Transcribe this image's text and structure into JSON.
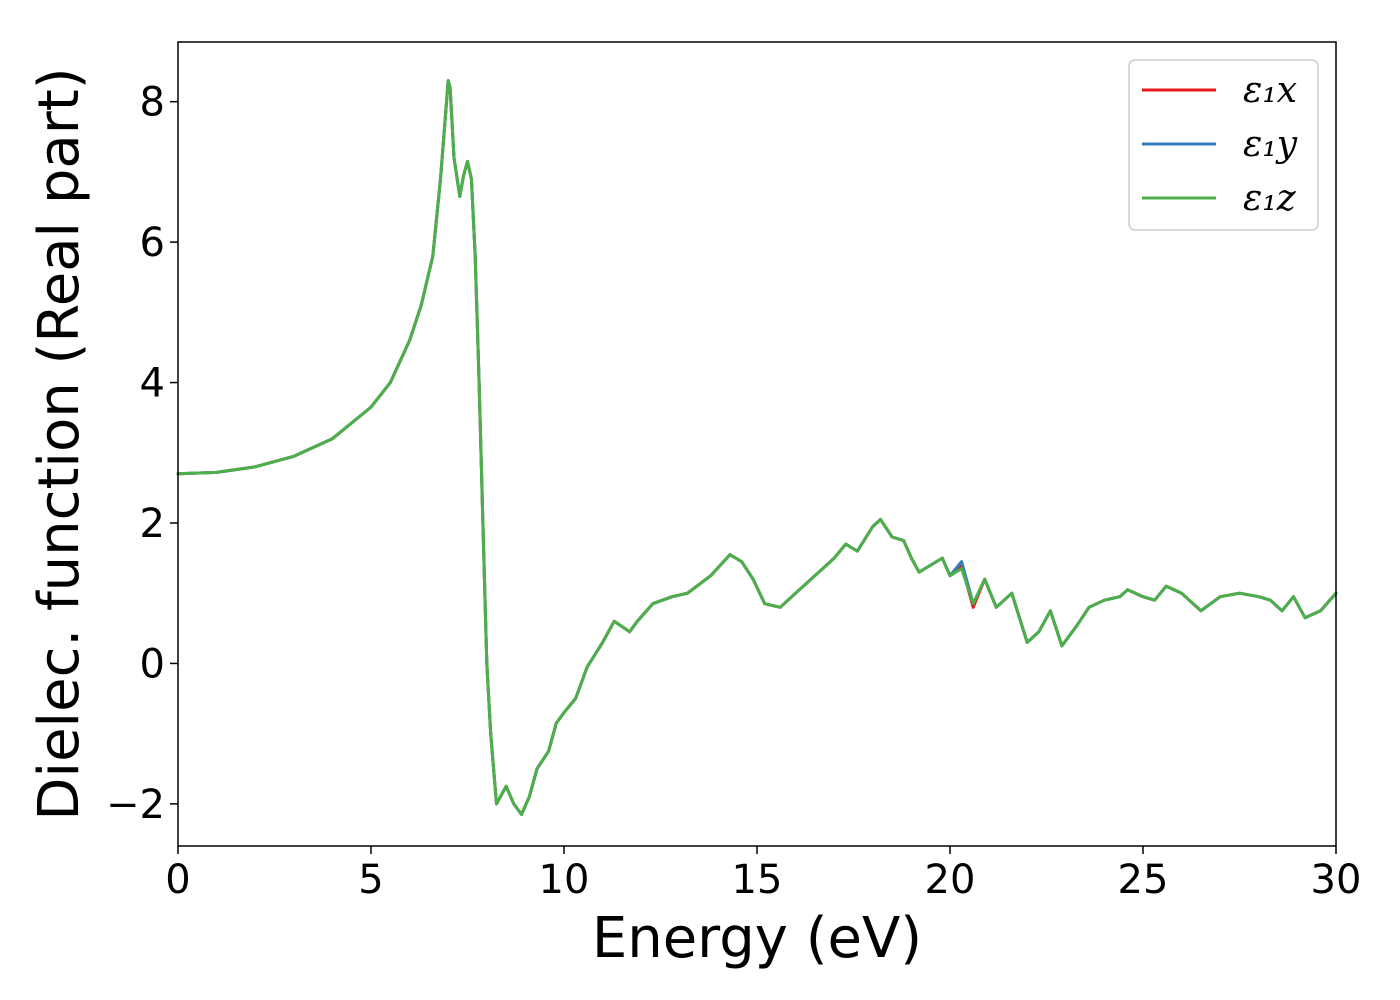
{
  "chart_data": {
    "type": "line",
    "xlabel": "Energy (eV)",
    "ylabel": "Dielec. function (Real part)",
    "xlim": [
      0,
      30
    ],
    "ylim": [
      -2.6,
      8.85
    ],
    "xticks": [
      0,
      5,
      10,
      15,
      20,
      25,
      30
    ],
    "xtick_labels": [
      "0",
      "5",
      "10",
      "15",
      "20",
      "25",
      "30"
    ],
    "yticks": [
      -2,
      0,
      2,
      4,
      6,
      8
    ],
    "ytick_labels": [
      "−2",
      "0",
      "2",
      "4",
      "6",
      "8"
    ],
    "grid": false,
    "legend_position": "top-right",
    "series": [
      {
        "name": "ε₁x",
        "color": "#e41a1c",
        "x": [
          0,
          1,
          2,
          3,
          4,
          5,
          5.5,
          6,
          6.3,
          6.6,
          6.8,
          7.0,
          7.05,
          7.15,
          7.3,
          7.4,
          7.5,
          7.6,
          7.7,
          7.8,
          7.9,
          8.0,
          8.1,
          8.25,
          8.5,
          8.7,
          8.9,
          9.1,
          9.3,
          9.6,
          9.8,
          10.0,
          10.3,
          10.6,
          11.0,
          11.3,
          11.7,
          11.9,
          12.3,
          12.8,
          13.2,
          13.8,
          14.3,
          14.6,
          14.9,
          15.2,
          15.6,
          16.0,
          16.5,
          17.0,
          17.3,
          17.6,
          18.0,
          18.2,
          18.5,
          18.8,
          19.0,
          19.2,
          19.5,
          19.8,
          20.0,
          20.3,
          20.6,
          20.9,
          21.2,
          21.6,
          22.0,
          22.3,
          22.6,
          22.9,
          23.3,
          23.6,
          24.0,
          24.4,
          24.6,
          25.0,
          25.3,
          25.6,
          26.0,
          26.5,
          27.0,
          27.5,
          28.0,
          28.3,
          28.6,
          28.9,
          29.2,
          29.6,
          30.0
        ],
        "y": [
          2.7,
          2.72,
          2.8,
          2.95,
          3.2,
          3.65,
          4.0,
          4.6,
          5.1,
          5.8,
          6.9,
          8.3,
          8.2,
          7.2,
          6.65,
          6.95,
          7.15,
          6.9,
          5.8,
          4.0,
          2.0,
          0.0,
          -1.0,
          -2.0,
          -1.75,
          -2.0,
          -2.15,
          -1.9,
          -1.5,
          -1.25,
          -0.85,
          -0.7,
          -0.5,
          -0.05,
          0.3,
          0.6,
          0.45,
          0.6,
          0.85,
          0.95,
          1.0,
          1.25,
          1.55,
          1.45,
          1.2,
          0.85,
          0.8,
          1.0,
          1.25,
          1.5,
          1.7,
          1.6,
          1.95,
          2.05,
          1.8,
          1.75,
          1.5,
          1.3,
          1.4,
          1.5,
          1.25,
          1.4,
          0.8,
          1.2,
          0.8,
          1.0,
          0.3,
          0.45,
          0.75,
          0.25,
          0.55,
          0.8,
          0.9,
          0.95,
          1.05,
          0.95,
          0.9,
          1.1,
          1.0,
          0.75,
          0.95,
          1.0,
          0.95,
          0.9,
          0.75,
          0.95,
          0.65,
          0.75,
          1.0
        ]
      },
      {
        "name": "ε₁y",
        "color": "#377eb8",
        "x": [
          0,
          1,
          2,
          3,
          4,
          5,
          5.5,
          6,
          6.3,
          6.6,
          6.8,
          7.0,
          7.05,
          7.15,
          7.3,
          7.4,
          7.5,
          7.6,
          7.7,
          7.8,
          7.9,
          8.0,
          8.1,
          8.25,
          8.5,
          8.7,
          8.9,
          9.1,
          9.3,
          9.6,
          9.8,
          10.0,
          10.3,
          10.6,
          11.0,
          11.3,
          11.7,
          11.9,
          12.3,
          12.8,
          13.2,
          13.8,
          14.3,
          14.6,
          14.9,
          15.2,
          15.6,
          16.0,
          16.5,
          17.0,
          17.3,
          17.6,
          18.0,
          18.2,
          18.5,
          18.8,
          19.0,
          19.2,
          19.5,
          19.8,
          20.0,
          20.3,
          20.6,
          20.9,
          21.2,
          21.6,
          22.0,
          22.3,
          22.6,
          22.9,
          23.3,
          23.6,
          24.0,
          24.4,
          24.6,
          25.0,
          25.3,
          25.6,
          26.0,
          26.5,
          27.0,
          27.5,
          28.0,
          28.3,
          28.6,
          28.9,
          29.2,
          29.6,
          30.0
        ],
        "y": [
          2.7,
          2.72,
          2.8,
          2.95,
          3.2,
          3.65,
          4.0,
          4.6,
          5.1,
          5.8,
          6.9,
          8.3,
          8.2,
          7.2,
          6.65,
          6.95,
          7.15,
          6.9,
          5.8,
          4.0,
          2.0,
          0.0,
          -1.0,
          -2.0,
          -1.75,
          -2.0,
          -2.15,
          -1.9,
          -1.5,
          -1.25,
          -0.85,
          -0.7,
          -0.5,
          -0.05,
          0.3,
          0.6,
          0.45,
          0.6,
          0.85,
          0.95,
          1.0,
          1.25,
          1.55,
          1.45,
          1.2,
          0.85,
          0.8,
          1.0,
          1.25,
          1.5,
          1.7,
          1.6,
          1.95,
          2.05,
          1.8,
          1.75,
          1.5,
          1.3,
          1.4,
          1.5,
          1.25,
          1.45,
          0.85,
          1.2,
          0.8,
          1.0,
          0.3,
          0.45,
          0.75,
          0.25,
          0.55,
          0.8,
          0.9,
          0.95,
          1.05,
          0.95,
          0.9,
          1.1,
          1.0,
          0.75,
          0.95,
          1.0,
          0.95,
          0.9,
          0.75,
          0.95,
          0.65,
          0.75,
          1.0
        ]
      },
      {
        "name": "ε₁z",
        "color": "#4daf4a",
        "x": [
          0,
          1,
          2,
          3,
          4,
          5,
          5.5,
          6,
          6.3,
          6.6,
          6.8,
          7.0,
          7.05,
          7.15,
          7.3,
          7.4,
          7.5,
          7.6,
          7.7,
          7.8,
          7.9,
          8.0,
          8.1,
          8.25,
          8.5,
          8.7,
          8.9,
          9.1,
          9.3,
          9.6,
          9.8,
          10.0,
          10.3,
          10.6,
          11.0,
          11.3,
          11.7,
          11.9,
          12.3,
          12.8,
          13.2,
          13.8,
          14.3,
          14.6,
          14.9,
          15.2,
          15.6,
          16.0,
          16.5,
          17.0,
          17.3,
          17.6,
          18.0,
          18.2,
          18.5,
          18.8,
          19.0,
          19.2,
          19.5,
          19.8,
          20.0,
          20.3,
          20.6,
          20.9,
          21.2,
          21.6,
          22.0,
          22.3,
          22.6,
          22.9,
          23.3,
          23.6,
          24.0,
          24.4,
          24.6,
          25.0,
          25.3,
          25.6,
          26.0,
          26.5,
          27.0,
          27.5,
          28.0,
          28.3,
          28.6,
          28.9,
          29.2,
          29.6,
          30.0
        ],
        "y": [
          2.7,
          2.72,
          2.8,
          2.95,
          3.2,
          3.65,
          4.0,
          4.6,
          5.1,
          5.8,
          6.9,
          8.3,
          8.2,
          7.2,
          6.65,
          6.95,
          7.15,
          6.9,
          5.8,
          4.0,
          2.0,
          0.0,
          -1.0,
          -2.0,
          -1.75,
          -2.0,
          -2.15,
          -1.9,
          -1.5,
          -1.25,
          -0.85,
          -0.7,
          -0.5,
          -0.05,
          0.3,
          0.6,
          0.45,
          0.6,
          0.85,
          0.95,
          1.0,
          1.25,
          1.55,
          1.45,
          1.2,
          0.85,
          0.8,
          1.0,
          1.25,
          1.5,
          1.7,
          1.6,
          1.95,
          2.05,
          1.8,
          1.75,
          1.5,
          1.3,
          1.4,
          1.5,
          1.25,
          1.35,
          0.85,
          1.2,
          0.8,
          1.0,
          0.3,
          0.45,
          0.75,
          0.25,
          0.55,
          0.8,
          0.9,
          0.95,
          1.05,
          0.95,
          0.9,
          1.1,
          1.0,
          0.75,
          0.95,
          1.0,
          0.95,
          0.9,
          0.75,
          0.95,
          0.65,
          0.75,
          1.0
        ]
      }
    ]
  }
}
